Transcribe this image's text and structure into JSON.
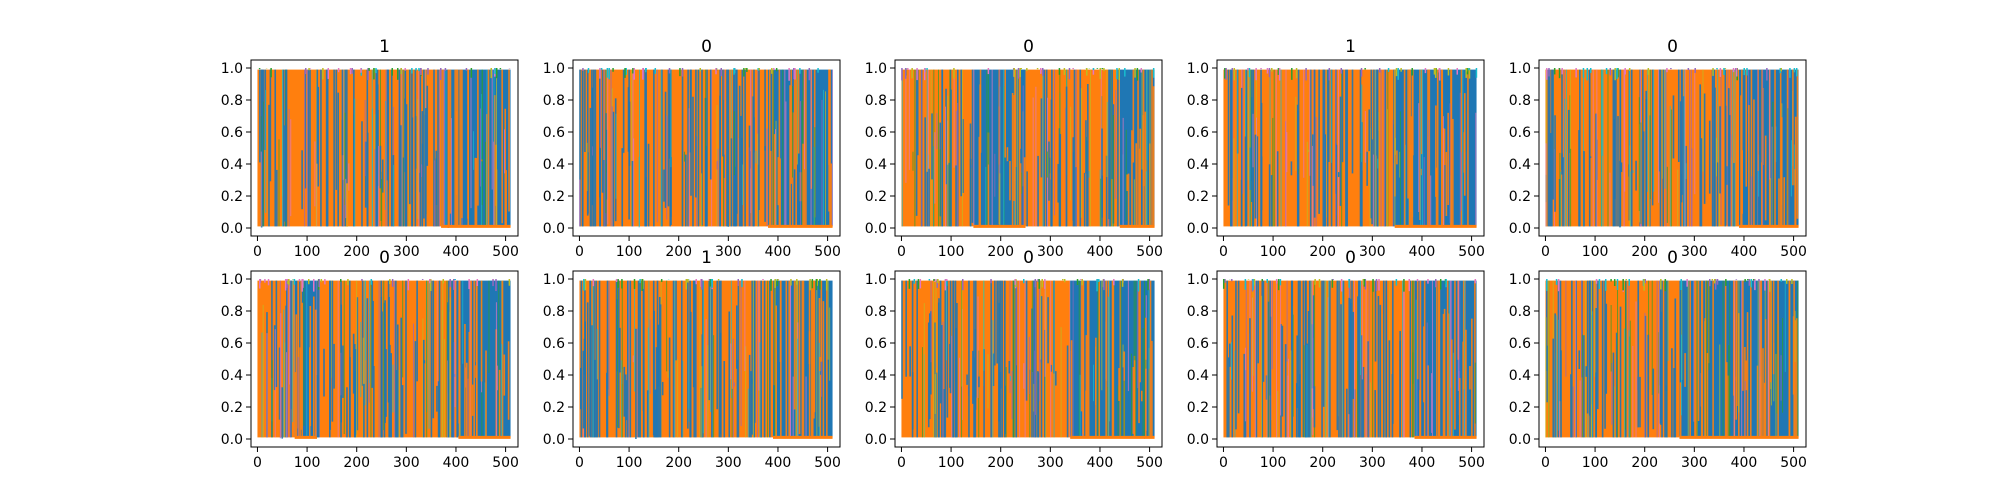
{
  "chart_data": {
    "type": "line",
    "description_free": true,
    "xlim": [
      -13,
      525
    ],
    "ylim": [
      -0.05,
      1.05
    ],
    "xticks": [
      0,
      100,
      200,
      300,
      400,
      500
    ],
    "yticks": [
      0.0,
      0.2,
      0.4,
      0.6,
      0.8,
      1.0
    ],
    "xtick_labels": [
      "0",
      "100",
      "200",
      "300",
      "400",
      "500"
    ],
    "ytick_labels": [
      "0.0",
      "0.2",
      "0.4",
      "0.6",
      "0.8",
      "1.0"
    ],
    "series_colors": [
      "#1f77b4",
      "#ff7f0e",
      "#17becf",
      "#bcbd22",
      "#2ca02c",
      "#9467bd",
      "#e377c2"
    ],
    "panels": [
      {
        "title": "1",
        "segments": [
          {
            "from": 0,
            "to": 370,
            "dominant": "orange"
          },
          {
            "from": 370,
            "to": 510,
            "dominant": "blue"
          }
        ]
      },
      {
        "title": "0",
        "segments": [
          {
            "from": 0,
            "to": 380,
            "dominant": "orange"
          },
          {
            "from": 380,
            "to": 510,
            "dominant": "blue"
          }
        ]
      },
      {
        "title": "0",
        "segments": [
          {
            "from": 0,
            "to": 145,
            "dominant": "orange"
          },
          {
            "from": 145,
            "to": 250,
            "dominant": "blue"
          },
          {
            "from": 250,
            "to": 440,
            "dominant": "orange"
          },
          {
            "from": 440,
            "to": 510,
            "dominant": "blue"
          }
        ]
      },
      {
        "title": "1",
        "segments": [
          {
            "from": 0,
            "to": 345,
            "dominant": "orange"
          },
          {
            "from": 345,
            "to": 510,
            "dominant": "blue"
          }
        ]
      },
      {
        "title": "0",
        "segments": [
          {
            "from": 0,
            "to": 390,
            "dominant": "orange"
          },
          {
            "from": 390,
            "to": 510,
            "dominant": "blue"
          }
        ]
      },
      {
        "title": "0",
        "segments": [
          {
            "from": 0,
            "to": 75,
            "dominant": "orange"
          },
          {
            "from": 75,
            "to": 120,
            "dominant": "blue"
          },
          {
            "from": 120,
            "to": 405,
            "dominant": "orange"
          },
          {
            "from": 405,
            "to": 510,
            "dominant": "blue"
          }
        ]
      },
      {
        "title": "1",
        "segments": [
          {
            "from": 0,
            "to": 390,
            "dominant": "orange"
          },
          {
            "from": 390,
            "to": 510,
            "dominant": "blue"
          }
        ]
      },
      {
        "title": "0",
        "segments": [
          {
            "from": 0,
            "to": 340,
            "dominant": "orange"
          },
          {
            "from": 340,
            "to": 510,
            "dominant": "blue"
          }
        ]
      },
      {
        "title": "0",
        "segments": [
          {
            "from": 0,
            "to": 385,
            "dominant": "orange"
          },
          {
            "from": 385,
            "to": 510,
            "dominant": "blue"
          }
        ]
      },
      {
        "title": "0",
        "segments": [
          {
            "from": 0,
            "to": 270,
            "dominant": "orange"
          },
          {
            "from": 270,
            "to": 510,
            "dominant": "blue"
          }
        ]
      }
    ]
  }
}
